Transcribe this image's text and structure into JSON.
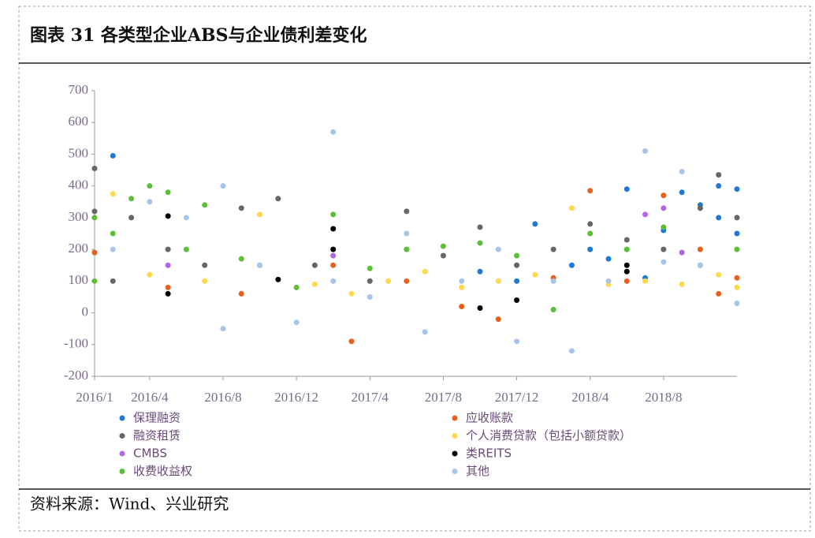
{
  "chart_data": {
    "type": "scatter",
    "title": "图表 31 各类型企业ABS与企业债利差变化",
    "source": "资料来源：Wind、兴业研究",
    "xlim": [
      "2016/1",
      "2018/12"
    ],
    "xticks": [
      "2016/1",
      "2016/4",
      "2016/8",
      "2016/12",
      "2017/4",
      "2017/8",
      "2017/12",
      "2018/4",
      "2018/8"
    ],
    "ylim": [
      -200,
      700
    ],
    "yticks": [
      -200,
      -100,
      0,
      100,
      200,
      300,
      400,
      500,
      600,
      700
    ],
    "series": [
      {
        "name": "保理融资",
        "color": "#1f78d1",
        "x": [
          "2016/2",
          "2017/10",
          "2017/12",
          "2018/1",
          "2018/3",
          "2018/4",
          "2018/5",
          "2018/6",
          "2018/7",
          "2018/8",
          "2018/9",
          "2018/10",
          "2018/11",
          "2018/11",
          "2018/12",
          "2018/12"
        ],
        "values": [
          495,
          130,
          100,
          280,
          150,
          200,
          170,
          390,
          110,
          260,
          380,
          340,
          400,
          300,
          390,
          250
        ]
      },
      {
        "name": "应收账款",
        "color": "#e8601c",
        "x": [
          "2016/1",
          "2016/5",
          "2016/9",
          "2017/2",
          "2017/3",
          "2017/6",
          "2017/9",
          "2017/11",
          "2018/2",
          "2018/4",
          "2018/6",
          "2018/8",
          "2018/10",
          "2018/11",
          "2018/12"
        ],
        "values": [
          190,
          80,
          60,
          150,
          -90,
          100,
          20,
          -20,
          110,
          385,
          100,
          370,
          200,
          60,
          110
        ]
      },
      {
        "name": "融资租赁",
        "color": "#666666",
        "x": [
          "2016/1",
          "2016/1",
          "2016/2",
          "2016/3",
          "2016/5",
          "2016/7",
          "2016/9",
          "2016/11",
          "2017/1",
          "2017/4",
          "2017/6",
          "2017/8",
          "2017/10",
          "2017/12",
          "2018/2",
          "2018/4",
          "2018/6",
          "2018/8",
          "2018/10",
          "2018/11",
          "2018/12"
        ],
        "values": [
          320,
          455,
          100,
          300,
          200,
          150,
          330,
          360,
          150,
          100,
          320,
          180,
          270,
          150,
          200,
          280,
          230,
          200,
          330,
          435,
          300
        ]
      },
      {
        "name": "个人消费贷款（包括小额贷款）",
        "color": "#ffd84d",
        "x": [
          "2016/2",
          "2016/4",
          "2016/7",
          "2016/10",
          "2017/1",
          "2017/3",
          "2017/5",
          "2017/7",
          "2017/9",
          "2017/11",
          "2018/1",
          "2018/3",
          "2018/5",
          "2018/7",
          "2018/9",
          "2018/11",
          "2018/12"
        ],
        "values": [
          375,
          120,
          100,
          310,
          90,
          60,
          100,
          130,
          80,
          100,
          120,
          330,
          90,
          100,
          90,
          120,
          80
        ]
      },
      {
        "name": "CMBS",
        "color": "#b266e0",
        "x": [
          "2016/5",
          "2017/2",
          "2018/7",
          "2018/8",
          "2018/9"
        ],
        "values": [
          150,
          180,
          310,
          330,
          190
        ]
      },
      {
        "name": "类REITS",
        "color": "#000000",
        "x": [
          "2016/5",
          "2016/5",
          "2016/11",
          "2017/2",
          "2017/2",
          "2017/10",
          "2017/12",
          "2018/6",
          "2018/6"
        ],
        "values": [
          305,
          60,
          105,
          265,
          200,
          15,
          40,
          150,
          130
        ]
      },
      {
        "name": "收费收益权",
        "color": "#5cbf3a",
        "x": [
          "2016/1",
          "2016/1",
          "2016/2",
          "2016/3",
          "2016/4",
          "2016/5",
          "2016/6",
          "2016/7",
          "2016/9",
          "2016/10",
          "2016/12",
          "2017/2",
          "2017/4",
          "2017/6",
          "2017/8",
          "2017/10",
          "2017/12",
          "2018/2",
          "2018/4",
          "2018/6",
          "2018/8",
          "2018/10",
          "2018/12"
        ],
        "values": [
          300,
          100,
          250,
          360,
          400,
          380,
          200,
          340,
          170,
          150,
          80,
          310,
          140,
          200,
          210,
          220,
          180,
          10,
          250,
          200,
          270,
          150,
          200
        ]
      },
      {
        "name": "其他",
        "color": "#a8c4e8",
        "x": [
          "2016/2",
          "2016/4",
          "2016/6",
          "2016/8",
          "2016/8",
          "2016/10",
          "2016/12",
          "2017/2",
          "2017/2",
          "2017/4",
          "2017/6",
          "2017/7",
          "2017/9",
          "2017/11",
          "2017/12",
          "2018/2",
          "2018/3",
          "2018/5",
          "2018/7",
          "2018/8",
          "2018/9",
          "2018/10",
          "2018/12"
        ],
        "values": [
          200,
          350,
          300,
          400,
          -50,
          150,
          -30,
          570,
          100,
          50,
          250,
          -60,
          100,
          200,
          -90,
          100,
          -120,
          100,
          510,
          160,
          445,
          150,
          30
        ]
      }
    ]
  }
}
